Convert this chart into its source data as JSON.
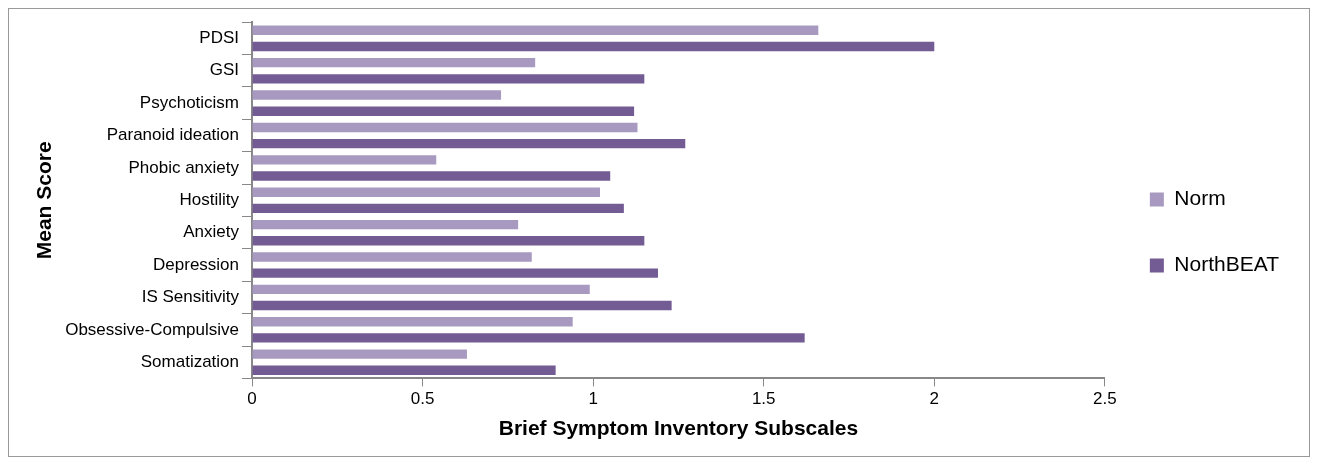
{
  "chart_data": {
    "type": "bar",
    "orientation": "horizontal",
    "xlabel": "Brief Symptom Inventory Subscales",
    "ylabel": "Mean Score",
    "categories": [
      "PDSI",
      "GSI",
      "Psychoticism",
      "Paranoid ideation",
      "Phobic anxiety",
      "Hostility",
      "Anxiety",
      "Depression",
      "IS Sensitivity",
      "Obsessive-Compulsive",
      "Somatization"
    ],
    "series": [
      {
        "name": "Norm",
        "color": "#a899c0",
        "values": [
          1.66,
          0.83,
          0.73,
          1.13,
          0.54,
          1.02,
          0.78,
          0.82,
          0.99,
          0.94,
          0.63
        ]
      },
      {
        "name": "NorthBEAT",
        "color": "#735b94",
        "values": [
          2.0,
          1.15,
          1.12,
          1.27,
          1.05,
          1.09,
          1.15,
          1.19,
          1.23,
          1.62,
          0.89
        ]
      }
    ],
    "xlim": [
      0,
      2.5
    ],
    "xticks": [
      0,
      0.5,
      1,
      1.5,
      2,
      2.5
    ],
    "grid": false,
    "legend": "right"
  }
}
